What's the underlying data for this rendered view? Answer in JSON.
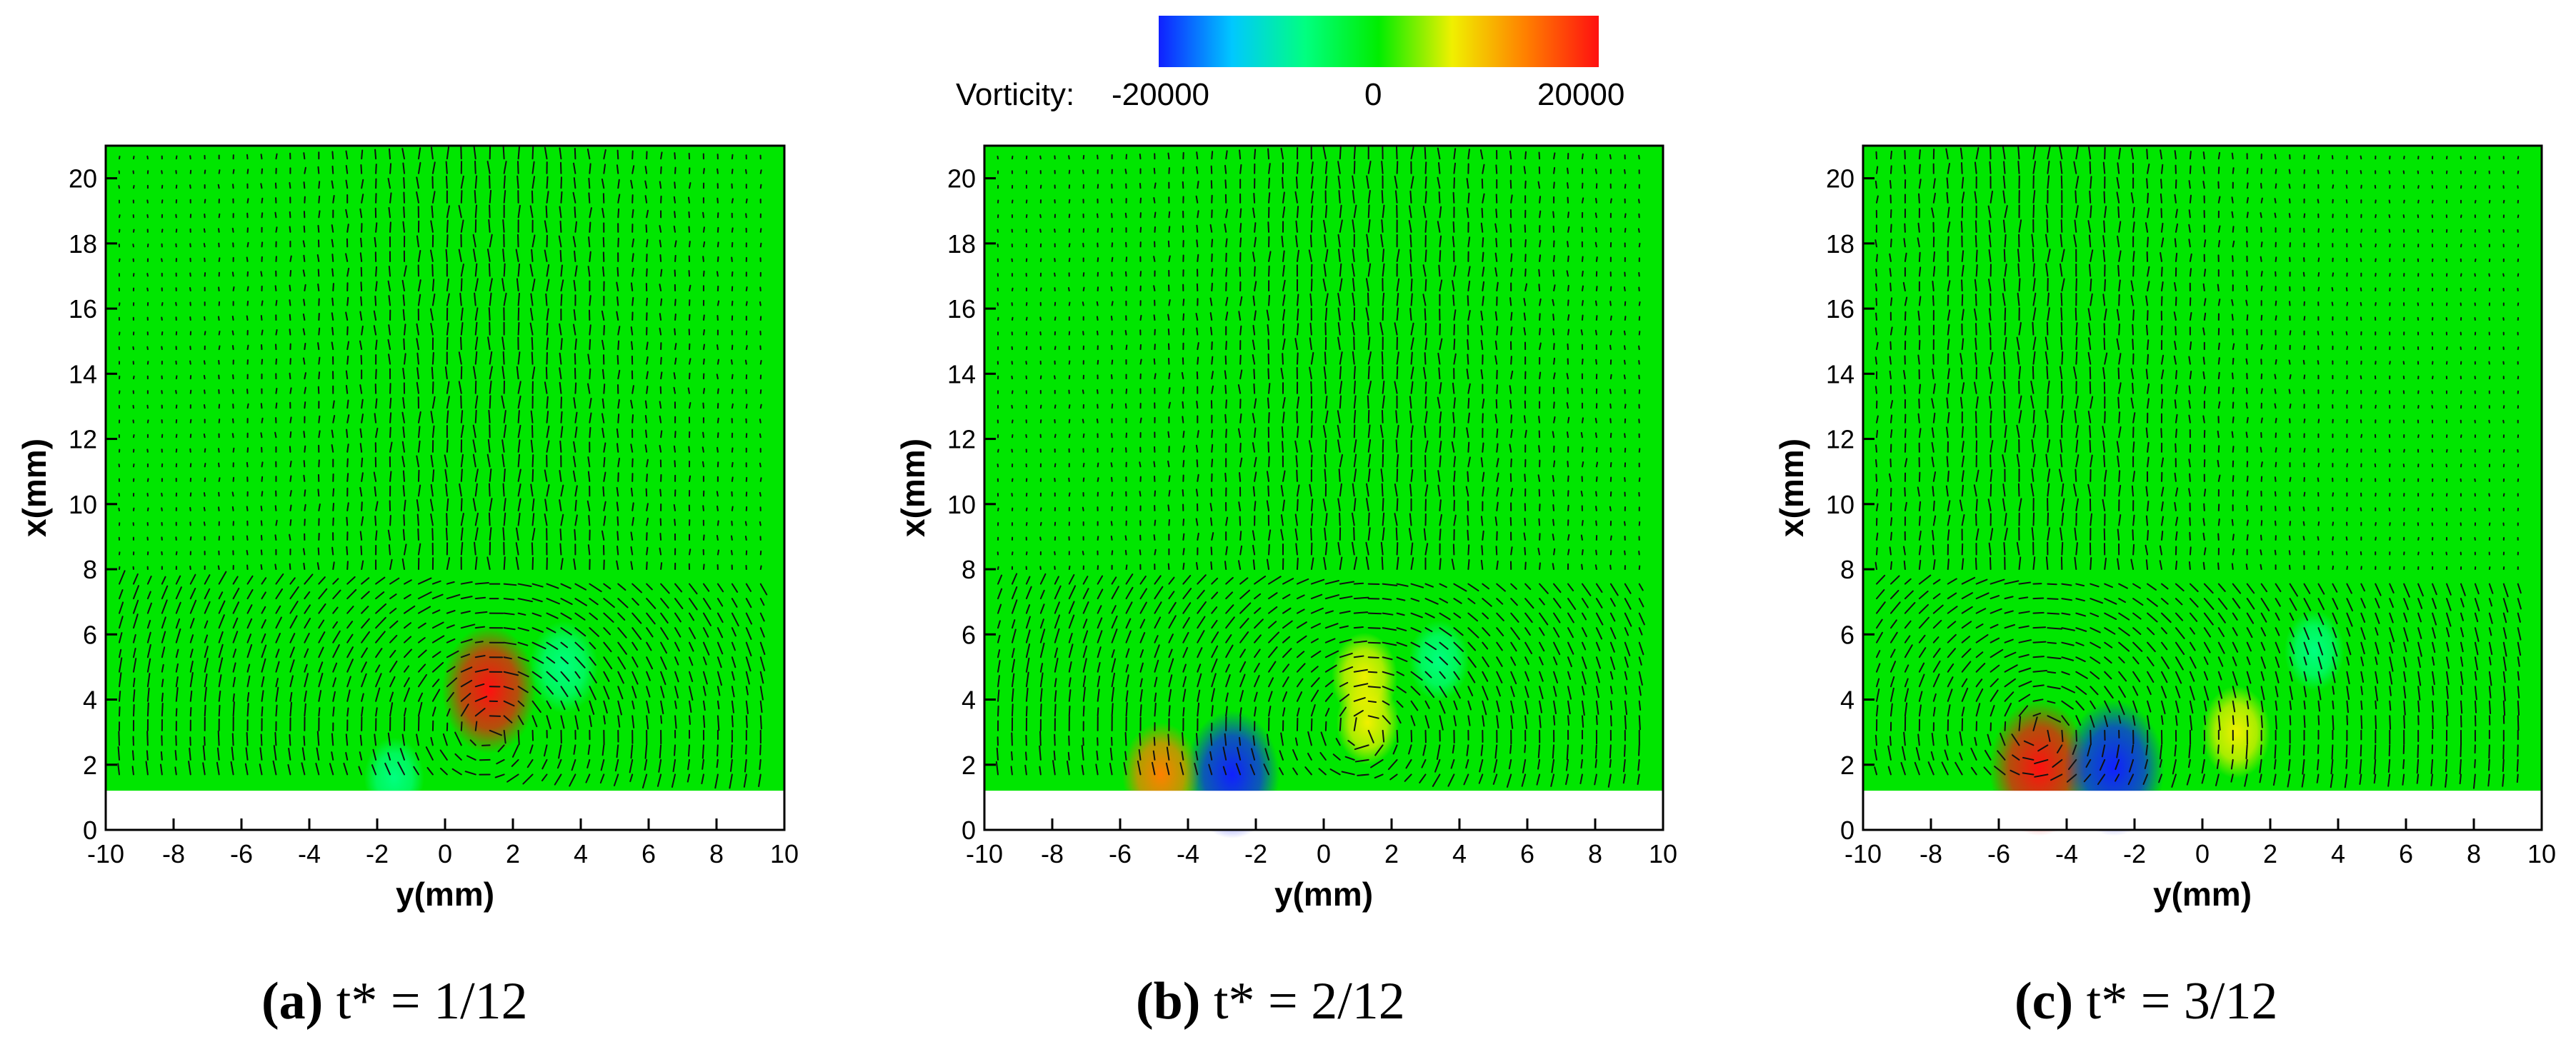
{
  "colorbar": {
    "label": "Vorticity:",
    "ticks": [
      "-20000",
      "0",
      "20000"
    ],
    "range": [
      -20000,
      20000
    ],
    "colors": [
      "#1020ff",
      "#00c8ff",
      "#00ff80",
      "#00ee00",
      "#f0f000",
      "#ff8000",
      "#ff1010"
    ]
  },
  "field_color": "#00e600",
  "chart_data": [
    {
      "type": "heatmap",
      "subplot": "(a)",
      "caption_rest": " t* = 1/12",
      "xlabel": "y(mm)",
      "ylabel": "x(mm)",
      "xlim": [
        -10,
        10
      ],
      "ylim": [
        0,
        21
      ],
      "xticks": [
        -10,
        -8,
        -6,
        -4,
        -2,
        0,
        2,
        4,
        6,
        8,
        10
      ],
      "yticks": [
        0,
        2,
        4,
        6,
        8,
        10,
        12,
        14,
        16,
        18,
        20
      ],
      "wall_top": 1.2,
      "vortices": [
        {
          "y": 1.3,
          "x": 4.3,
          "value": 18000
        },
        {
          "y": 3.5,
          "x": 5.0,
          "value": -9000
        },
        {
          "y": -1.5,
          "x": 1.6,
          "value": -6000
        }
      ]
    },
    {
      "type": "heatmap",
      "subplot": "(b)",
      "caption_rest": " t* = 2/12",
      "xlabel": "y(mm)",
      "ylabel": "x(mm)",
      "xlim": [
        -10,
        10
      ],
      "ylim": [
        0,
        21
      ],
      "xticks": [
        -10,
        -8,
        -6,
        -4,
        -2,
        0,
        2,
        4,
        6,
        8,
        10
      ],
      "yticks": [
        0,
        2,
        4,
        6,
        8,
        10,
        12,
        14,
        16,
        18,
        20
      ],
      "wall_top": 1.2,
      "vortices": [
        {
          "y": 1.2,
          "x": 4.7,
          "value": 8000
        },
        {
          "y": 1.3,
          "x": 3.3,
          "value": 7000
        },
        {
          "y": 3.4,
          "x": 5.2,
          "value": -6000
        },
        {
          "y": -2.7,
          "x": 1.7,
          "value": -18000
        },
        {
          "y": -4.8,
          "x": 1.7,
          "value": 12000
        }
      ]
    },
    {
      "type": "heatmap",
      "subplot": "(c)",
      "caption_rest": " t* = 3/12",
      "xlabel": "y(mm)",
      "ylabel": "x(mm)",
      "xlim": [
        -10,
        10
      ],
      "ylim": [
        0,
        21
      ],
      "xticks": [
        -10,
        -8,
        -6,
        -4,
        -2,
        0,
        2,
        4,
        6,
        8,
        10
      ],
      "yticks": [
        0,
        2,
        4,
        6,
        8,
        10,
        12,
        14,
        16,
        18,
        20
      ],
      "wall_top": 1.2,
      "vortices": [
        {
          "y": -4.8,
          "x": 1.9,
          "value": 20000
        },
        {
          "y": -2.6,
          "x": 1.9,
          "value": -20000
        },
        {
          "y": 3.3,
          "x": 5.5,
          "value": -6000
        },
        {
          "y": 1.0,
          "x": 3.0,
          "value": 9000
        }
      ]
    }
  ]
}
